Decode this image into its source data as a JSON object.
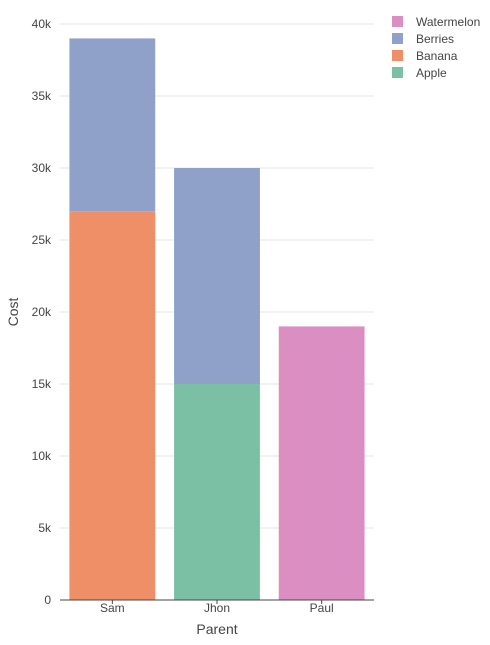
{
  "chart_data": {
    "type": "bar",
    "barmode": "stack",
    "categories": [
      "Sam",
      "Jhon",
      "Paul"
    ],
    "xlabel": "Parent",
    "ylabel": "Cost",
    "ylim": [
      0,
      40000
    ],
    "yticks": [
      0,
      5000,
      10000,
      15000,
      20000,
      25000,
      30000,
      35000,
      40000
    ],
    "ytick_labels": [
      "0",
      "5k",
      "10k",
      "15k",
      "20k",
      "25k",
      "30k",
      "35k",
      "40k"
    ],
    "grid": true,
    "legend_position": "top-right",
    "legend_order": [
      "Watermelon",
      "Berries",
      "Banana",
      "Apple"
    ],
    "series": [
      {
        "name": "Apple",
        "color": "#7bbfa4",
        "values": [
          0,
          15000,
          0
        ]
      },
      {
        "name": "Banana",
        "color": "#ee8f68",
        "values": [
          27000,
          0,
          0
        ]
      },
      {
        "name": "Berries",
        "color": "#8fa1c8",
        "values": [
          12000,
          15000,
          0
        ]
      },
      {
        "name": "Watermelon",
        "color": "#db8ec2",
        "values": [
          0,
          0,
          19000
        ]
      }
    ]
  }
}
